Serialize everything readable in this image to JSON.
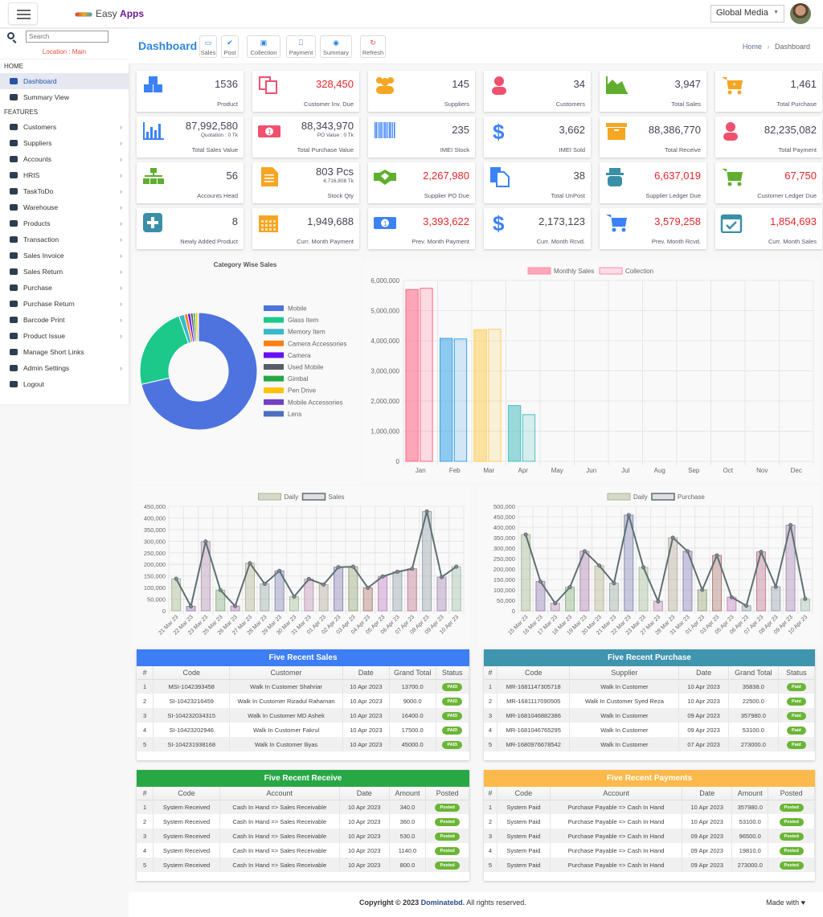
{
  "header": {
    "brand_prefix": "Easy",
    "brand_suffix": "Apps",
    "org_select": "Global Media"
  },
  "sidebar": {
    "search_placeholder": "Search",
    "location": "Location : Main",
    "sections": [
      {
        "title": "HOME",
        "items": [
          {
            "label": "Dashboard",
            "icon": "dashboard-icon",
            "active": true,
            "chevron": false
          },
          {
            "label": "Summary View",
            "icon": "dashboard-icon",
            "active": false,
            "chevron": false
          }
        ]
      },
      {
        "title": "FEATURES",
        "items": [
          {
            "label": "Customers",
            "icon": "users-icon",
            "chevron": true
          },
          {
            "label": "Suppliers",
            "icon": "users-icon",
            "chevron": true
          },
          {
            "label": "Accounts",
            "icon": "money-icon",
            "chevron": true
          },
          {
            "label": "HRIS",
            "icon": "users-icon",
            "chevron": true
          },
          {
            "label": "TaskToDo",
            "icon": "tag-icon",
            "chevron": true
          },
          {
            "label": "Warehouse",
            "icon": "archive-icon",
            "chevron": true
          },
          {
            "label": "Products",
            "icon": "archive-icon",
            "chevron": true
          },
          {
            "label": "Transaction",
            "icon": "bookmark-icon",
            "chevron": true
          },
          {
            "label": "Sales Invoice",
            "icon": "send-icon",
            "chevron": true
          },
          {
            "label": "Sales Return",
            "icon": "send-icon",
            "chevron": true
          },
          {
            "label": "Purchase",
            "icon": "download-icon",
            "chevron": true
          },
          {
            "label": "Purchase Return",
            "icon": "download-icon",
            "chevron": true
          },
          {
            "label": "Barcode Print",
            "icon": "barcode-icon",
            "chevron": true
          },
          {
            "label": "Product Issue",
            "icon": "send-icon",
            "chevron": true
          },
          {
            "label": "Manage Short Links",
            "icon": "gear-icon",
            "chevron": false
          },
          {
            "label": "Admin Settings",
            "icon": "gear-icon",
            "chevron": true
          },
          {
            "label": "Logout",
            "icon": "logout-icon",
            "chevron": false
          }
        ]
      }
    ]
  },
  "page": {
    "title": "Dashboard",
    "toolbar": [
      {
        "label": "Sales",
        "icon": "laptop-icon",
        "color": "#2e86de"
      },
      {
        "label": "Post",
        "icon": "check-icon",
        "color": "#2e86de"
      },
      {
        "label": "Collection",
        "icon": "money-icon",
        "color": "#2e86de"
      },
      {
        "label": "Payment",
        "icon": "bookmark-icon",
        "color": "#2e86de"
      },
      {
        "label": "Summary",
        "icon": "dashboard-icon",
        "color": "#2e86de"
      },
      {
        "label": "Refresh",
        "icon": "refresh-icon",
        "color": "#e74c3c"
      }
    ],
    "breadcrumb": {
      "home": "Home",
      "sep": ">",
      "current": "Dashboard"
    }
  },
  "cards": [
    {
      "value": "1536",
      "label": "Product",
      "icon": "cubes-icon",
      "color": "#3b82f6",
      "red": false
    },
    {
      "value": "328,450",
      "label": "Customer Inv. Due",
      "icon": "copy-icon",
      "color": "#f0506e",
      "red": true
    },
    {
      "value": "145",
      "label": "Suppliers",
      "icon": "users-icon",
      "color": "#f5a623",
      "red": false
    },
    {
      "value": "34",
      "label": "Customers",
      "icon": "user-icon",
      "color": "#f0506e",
      "red": false
    },
    {
      "value": "3,947",
      "label": "Total Sales",
      "icon": "area-chart-icon",
      "color": "#5fae2e",
      "red": false
    },
    {
      "value": "1,461",
      "label": "Total Purchase",
      "icon": "cart-plus-icon",
      "color": "#f5a623",
      "red": false
    },
    {
      "value": "87,992,580",
      "sub": "Quotation : 0 Tk",
      "label": "Total Sales Value",
      "icon": "bar-chart-icon",
      "color": "#3b82f6",
      "red": false
    },
    {
      "value": "88,343,970",
      "sub": "PO Value : 0 Tk",
      "label": "Total Purchase Value",
      "icon": "money-icon",
      "color": "#f0506e",
      "red": false
    },
    {
      "value": "235",
      "label": "IMEI Stock",
      "icon": "barcode-icon",
      "color": "#3b82f6",
      "red": false
    },
    {
      "value": "3,662",
      "label": "IMEI Sold",
      "icon": "dollar-icon",
      "color": "#3b82f6",
      "red": false
    },
    {
      "value": "88,386,770",
      "label": "Total Receive",
      "icon": "archive-icon",
      "color": "#f5a623",
      "red": false
    },
    {
      "value": "82,235,082",
      "label": "Total Payment",
      "icon": "user-icon",
      "color": "#f0506e",
      "red": false
    },
    {
      "value": "56",
      "label": "Accounts Head",
      "icon": "sitemap-icon",
      "color": "#5fae2e",
      "red": false
    },
    {
      "value": "803 Pcs",
      "sub": "4,716,808 Tk",
      "label": "Stock Qty",
      "icon": "file-icon",
      "color": "#f5a623",
      "red": false
    },
    {
      "value": "2,267,980",
      "label": "Supplier PO Due",
      "icon": "handshake-icon",
      "color": "#5fae2e",
      "red": true
    },
    {
      "value": "38",
      "label": "Total UnPost",
      "icon": "files-icon",
      "color": "#3b82f6",
      "red": false
    },
    {
      "value": "6,637,019",
      "label": "Supplier Ledger Due",
      "icon": "spy-icon",
      "color": "#3a8fa8",
      "red": true
    },
    {
      "value": "67,750",
      "label": "Customer Ledger Due",
      "icon": "cart-icon",
      "color": "#5fae2e",
      "red": true
    },
    {
      "value": "8",
      "label": "Newly Added Product",
      "icon": "plus-square-icon",
      "color": "#3a8fa8",
      "red": false
    },
    {
      "value": "1,949,688",
      "label": "Curr. Month Payment",
      "icon": "calendar-icon",
      "color": "#f5a623",
      "red": false
    },
    {
      "value": "3,393,622",
      "label": "Prev. Month Payment",
      "icon": "money-icon",
      "color": "#3b82f6",
      "red": true
    },
    {
      "value": "2,173,123",
      "label": "Curr. Month Rcvd.",
      "icon": "dollar-icon",
      "color": "#3b82f6",
      "red": false
    },
    {
      "value": "3,579,258",
      "label": "Prev. Month Rcvd.",
      "icon": "cart-icon",
      "color": "#3b82f6",
      "red": true
    },
    {
      "value": "1,854,693",
      "label": "Curr. Month Sales",
      "icon": "calendar-check-icon",
      "color": "#3a8fa8",
      "red": true
    }
  ],
  "chart_data": [
    {
      "type": "pie",
      "title": "Category Wise Sales",
      "legend_position": "right",
      "categories": [
        "Mobile",
        "Glass Item",
        "Memory Item",
        "Camera Accessories",
        "Camera",
        "Used Mobile",
        "Gimbal",
        "Pen Drive",
        "Mobile Accessories",
        "Lens"
      ],
      "values": [
        71.0,
        23.0,
        1.5,
        0.9,
        0.8,
        0.7,
        0.6,
        0.7,
        0.1,
        0.1
      ],
      "colors": [
        "#4e73df",
        "#1cc88a",
        "#36b9cc",
        "#fd7e14",
        "#6610f2",
        "#5a5c69",
        "#28a745",
        "#ffc107",
        "#6f42c1",
        "#4e6fbf"
      ]
    },
    {
      "type": "bar",
      "title": "",
      "legend_position": "top",
      "categories": [
        "Jan",
        "Feb",
        "Mar",
        "Apr",
        "May",
        "Jun",
        "Jul",
        "Aug",
        "Sep",
        "Oct",
        "Nov",
        "Dec"
      ],
      "series": [
        {
          "name": "Monthly Sales",
          "values": [
            5700000,
            4080000,
            4370000,
            1850000,
            0,
            0,
            0,
            0,
            0,
            0,
            0,
            0
          ]
        },
        {
          "name": "Collection",
          "values": [
            5740000,
            4060000,
            4380000,
            1550000,
            0,
            0,
            0,
            0,
            0,
            0,
            0,
            0
          ]
        }
      ],
      "month_colors": [
        "#ff6384",
        "#36a2eb",
        "#ffce56",
        "#4bc0c0"
      ],
      "ylim": [
        0,
        6000000
      ],
      "yticks": [
        "0",
        "1,000,000",
        "2,000,000",
        "3,000,000",
        "4,000,000",
        "5,000,000",
        "6,000,000"
      ],
      "grid": true
    },
    {
      "type": "bar",
      "title": "",
      "legend_position": "top",
      "legend": [
        "Daily",
        "Sales"
      ],
      "categories": [
        "21 Mar 23",
        "22 Mar 23",
        "23 Mar 23",
        "25 Mar 23",
        "26 Mar 23",
        "27 Mar 23",
        "28 Mar 23",
        "29 Mar 23",
        "30 Mar 23",
        "31 Mar 23",
        "01 Apr 23",
        "02 Apr 23",
        "03 Apr 23",
        "04 Apr 23",
        "05 Apr 23",
        "06 Apr 23",
        "07 Apr 23",
        "08 Apr 23",
        "09 Apr 23",
        "10 Apr 23"
      ],
      "values": [
        138000,
        19000,
        298000,
        89000,
        20000,
        205000,
        116000,
        172000,
        61000,
        137000,
        113000,
        188000,
        190000,
        99000,
        148000,
        168000,
        181000,
        428000,
        145000,
        190000
      ],
      "ylim": [
        0,
        450000
      ],
      "yticks": [
        "0",
        "50,000",
        "100,000",
        "150,000",
        "200,000",
        "250,000",
        "300,000",
        "350,000",
        "400,000",
        "450,000"
      ],
      "grid": true
    },
    {
      "type": "bar",
      "title": "",
      "legend_position": "top",
      "legend": [
        "Daily",
        "Purchase"
      ],
      "categories": [
        "15 Mar 23",
        "16 Mar 23",
        "17 Mar 23",
        "18 Mar 23",
        "19 Mar 23",
        "20 Mar 23",
        "21 Mar 23",
        "22 Mar 23",
        "23 Mar 23",
        "27 Mar 23",
        "28 Mar 23",
        "31 Mar 23",
        "01 Apr 23",
        "03 Apr 23",
        "05 Apr 23",
        "06 Apr 23",
        "07 Apr 23",
        "08 Apr 23",
        "09 Apr 23",
        "10 Apr 23"
      ],
      "values": [
        365000,
        140000,
        36000,
        113000,
        285000,
        216000,
        132000,
        458000,
        208000,
        45000,
        350000,
        285000,
        100000,
        265000,
        65000,
        24000,
        282000,
        115000,
        410000,
        57000
      ],
      "ylim": [
        0,
        500000
      ],
      "yticks": [
        "0",
        "50,000",
        "100,000",
        "150,000",
        "200,000",
        "250,000",
        "300,000",
        "350,000",
        "400,000",
        "450,000",
        "500,000"
      ],
      "grid": true
    }
  ],
  "tables": {
    "sales": {
      "title": "Five Recent Sales",
      "color": "#3d7ef5",
      "headers": [
        "#",
        "Code",
        "Customer",
        "Date",
        "Grand Total",
        "Status"
      ],
      "rows": [
        [
          "1",
          "MSI-1042393458",
          "Walk In Customer Shahriar",
          "10 Apr 2023",
          "13700.0",
          "PAID"
        ],
        [
          "2",
          "SI-10423216459",
          "Walk In Customer Rizadul Rahaman",
          "10 Apr 2023",
          "9000.0",
          "PAID"
        ],
        [
          "3",
          "SI-104232034315",
          "Walk In Customer MD Ashek",
          "10 Apr 2023",
          "16400.0",
          "PAID"
        ],
        [
          "4",
          "SI-10423202946",
          "Walk In Customer Fakrul",
          "10 Apr 2023",
          "17500.0",
          "PAID"
        ],
        [
          "5",
          "SI-104231938168",
          "Walk In Customer Iliyas",
          "10 Apr 2023",
          "45000.0",
          "PAID"
        ]
      ]
    },
    "purchase": {
      "title": "Five Recent Purchase",
      "color": "#3f94ae",
      "headers": [
        "#",
        "Code",
        "Supplier",
        "Date",
        "Grand Total",
        "Status"
      ],
      "rows": [
        [
          "1",
          "MR-1681147305718",
          "Walk In Customer",
          "10 Apr 2023",
          "35838.0",
          "Paid"
        ],
        [
          "2",
          "MR-1681117090505",
          "Walk In Customer Syed Reza",
          "10 Apr 2023",
          "22500.0",
          "Paid"
        ],
        [
          "3",
          "MR-1681046882386",
          "Walk In Customer",
          "09 Apr 2023",
          "357980.0",
          "Paid"
        ],
        [
          "4",
          "MR-1681046765295",
          "Walk In Customer",
          "09 Apr 2023",
          "53100.0",
          "Paid"
        ],
        [
          "5",
          "MR-1680976678542",
          "Walk In Customer",
          "07 Apr 2023",
          "273000.0",
          "Paid"
        ]
      ]
    },
    "receive": {
      "title": "Five Recent Receive",
      "color": "#28a745",
      "headers": [
        "#",
        "Code",
        "Account",
        "Date",
        "Amount",
        "Posted"
      ],
      "rows": [
        [
          "1",
          "System Received",
          "Cash In Hand => Sales Receivable",
          "10 Apr 2023",
          "340.0",
          "Posted"
        ],
        [
          "2",
          "System Received",
          "Cash In Hand => Sales Receivable",
          "10 Apr 2023",
          "360.0",
          "Posted"
        ],
        [
          "3",
          "System Received",
          "Cash In Hand => Sales Receivable",
          "10 Apr 2023",
          "530.0",
          "Posted"
        ],
        [
          "4",
          "System Received",
          "Cash In Hand => Sales Receivable",
          "10 Apr 2023",
          "1140.0",
          "Posted"
        ],
        [
          "5",
          "System Received",
          "Cash In Hand => Sales Receivable",
          "10 Apr 2023",
          "800.0",
          "Posted"
        ]
      ]
    },
    "payments": {
      "title": "Five Recent Payments",
      "color": "#fdb94b",
      "headers": [
        "#",
        "Code",
        "Account",
        "Date",
        "Amount",
        "Posted"
      ],
      "rows": [
        [
          "1",
          "System Paid",
          "Purchase Payable => Cash In Hand",
          "10 Apr 2023",
          "357980.0",
          "Posted"
        ],
        [
          "2",
          "System Paid",
          "Purchase Payable => Cash In Hand",
          "10 Apr 2023",
          "53100.0",
          "Posted"
        ],
        [
          "3",
          "System Paid",
          "Purchase Payable => Cash In Hand",
          "09 Apr 2023",
          "96500.0",
          "Posted"
        ],
        [
          "4",
          "System Paid",
          "Purchase Payable => Cash In Hand",
          "09 Apr 2023",
          "19810.0",
          "Posted"
        ],
        [
          "5",
          "System Paid",
          "Purchase Payable => Cash In Hand",
          "09 Apr 2023",
          "273000.0",
          "Posted"
        ]
      ]
    }
  },
  "footer": {
    "copyright_prefix": "Copyright © 2023",
    "company": "Dominatebd.",
    "copyright_suffix": "All rights reserved.",
    "made_with": "Made with"
  }
}
